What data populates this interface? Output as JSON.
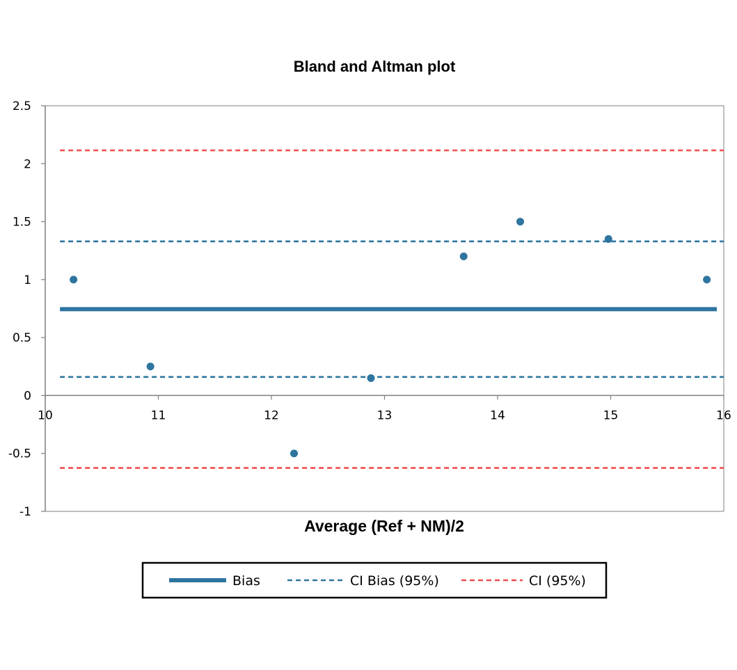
{
  "chart_data": {
    "type": "scatter",
    "title": "Bland and Altman plot",
    "xlabel": "Average (Ref + NM)/2",
    "ylabel": "",
    "xlim": [
      10,
      16
    ],
    "ylim": [
      -1,
      2.5
    ],
    "x_ticks": [
      10,
      11,
      12,
      13,
      14,
      15,
      16
    ],
    "y_ticks": [
      2.5,
      2,
      1.5,
      1,
      0.5,
      0,
      -0.5,
      -1
    ],
    "x_tick_labels": [
      "10",
      "11",
      "12",
      "13",
      "14",
      "15",
      "16"
    ],
    "y_tick_labels": [
      "2.5",
      "2",
      "1.5",
      "1",
      "0.5",
      "0",
      "-0.5",
      "-1"
    ],
    "grid": false,
    "points": {
      "color": "#2E75A0",
      "x": [
        10.25,
        10.93,
        12.2,
        12.88,
        13.7,
        14.2,
        14.98,
        15.85
      ],
      "y": [
        1.0,
        0.25,
        -0.5,
        0.15,
        1.2,
        1.5,
        1.35,
        1.0
      ]
    },
    "lines": [
      {
        "name": "Bias",
        "y": 0.745,
        "x_range": [
          10.13,
          16.0
        ],
        "style": "solid",
        "color": "#2E75A0"
      },
      {
        "name": "CI Bias (95%)",
        "y": 1.33,
        "x_range": [
          10.13,
          16.0
        ],
        "style": "dashed",
        "color": "#2E75A0"
      },
      {
        "name": "CI Bias (95%)",
        "y": 0.16,
        "x_range": [
          10.13,
          16.0
        ],
        "style": "dashed",
        "color": "#2E75A0"
      },
      {
        "name": "CI (95%)",
        "y": 2.115,
        "x_range": [
          10.13,
          16.0
        ],
        "style": "dashed",
        "color": "#F04D4D"
      },
      {
        "name": "CI (95%)",
        "y": -0.625,
        "x_range": [
          10.13,
          16.0
        ],
        "style": "dashed",
        "color": "#F04D4D"
      }
    ],
    "legend": {
      "position": "bottom",
      "entries": [
        {
          "label": "Bias",
          "style": "solid",
          "color": "#2E75A0"
        },
        {
          "label": "CI Bias (95%)",
          "style": "dashed",
          "color": "#2E75A0"
        },
        {
          "label": "CI (95%)",
          "style": "dashed",
          "color": "#F04D4D"
        }
      ]
    }
  }
}
